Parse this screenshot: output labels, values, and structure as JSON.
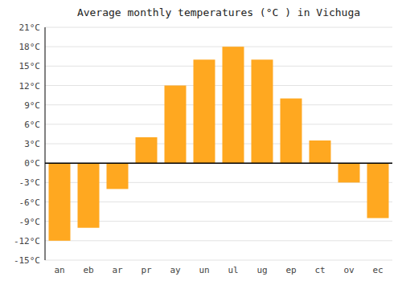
{
  "chart_data": {
    "type": "bar",
    "title": "Average monthly temperatures (°C ) in Vichuga",
    "categories": [
      "an",
      "eb",
      "ar",
      "pr",
      "ay",
      "un",
      "ul",
      "ug",
      "ep",
      "ct",
      "ov",
      "ec"
    ],
    "values": [
      -12,
      -10,
      -4,
      4,
      12,
      16,
      18,
      16,
      10,
      3.5,
      -3,
      -8.5
    ],
    "color": "#FFA820",
    "ylim": [
      -15,
      21
    ],
    "yticks": [
      {
        "value": -15,
        "label": "-15°C"
      },
      {
        "value": -12,
        "label": "-12°C"
      },
      {
        "value": -9,
        "label": "-9°C"
      },
      {
        "value": -6,
        "label": "-6°C"
      },
      {
        "value": -3,
        "label": "-3°C"
      },
      {
        "value": 0,
        "label": "0°C"
      },
      {
        "value": 3,
        "label": "3°C"
      },
      {
        "value": 6,
        "label": "6°C"
      },
      {
        "value": 9,
        "label": "9°C"
      },
      {
        "value": 12,
        "label": "12°C"
      },
      {
        "value": 15,
        "label": "15°C"
      },
      {
        "value": 18,
        "label": "18°C"
      },
      {
        "value": 21,
        "label": "21°C"
      }
    ],
    "grid": true
  }
}
